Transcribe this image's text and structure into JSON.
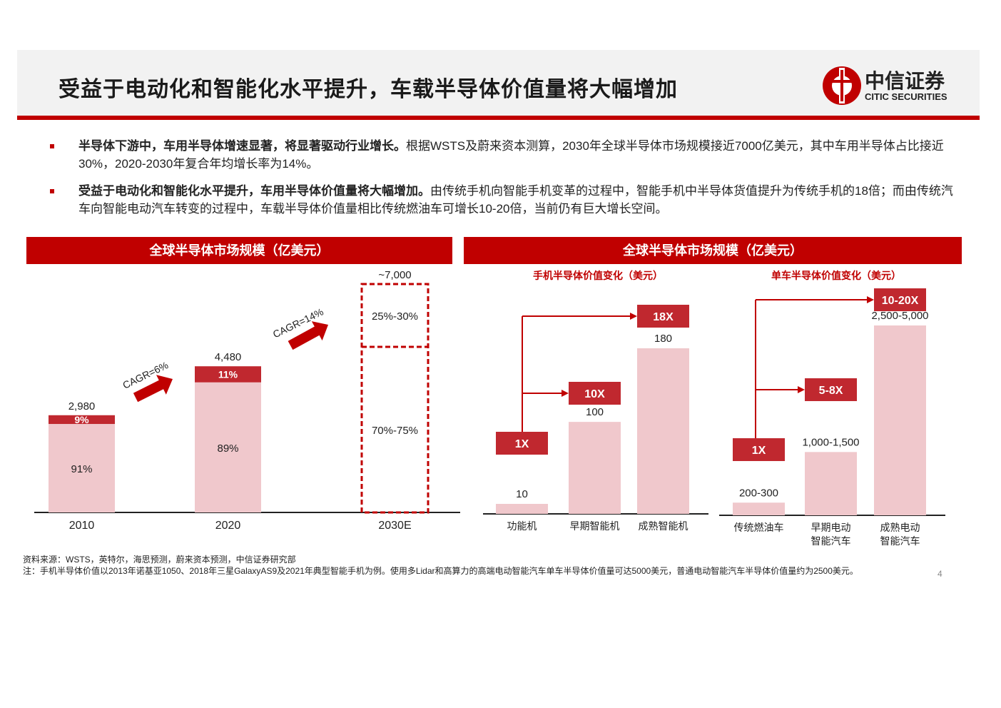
{
  "header": {
    "title": "受益于电动化和智能化水平提升，车载半导体价值量将大幅增加",
    "logo_cn": "中信证券",
    "logo_en": "CITIC SECURITIES"
  },
  "bullets": [
    {
      "bold": "半导体下游中，车用半导体增速显著，将显著驱动行业增长。",
      "text": "根据WSTS及蔚来资本测算，2030年全球半导体市场规模接近7000亿美元，其中车用半导体占比接近30%，2020-2030年复合年均增长率为14%。"
    },
    {
      "bold": "受益于电动化和智能化水平提升，车用半导体价值量将大幅增加。",
      "text": "由传统手机向智能手机变革的过程中，智能手机中半导体货值提升为传统手机的18倍；而由传统汽车向智能电动汽车转变的过程中，车载半导体价值量相比传统燃油车可增长10-20倍，当前仍有巨大增长空间。"
    }
  ],
  "colors": {
    "accent": "#c00000",
    "bar_light": "#f0c8cc",
    "bar_dark": "#c0282f"
  },
  "chart_data": [
    {
      "type": "bar",
      "title": "全球半导体市场规模（亿美元）",
      "categories": [
        "2010",
        "2020",
        "2030E"
      ],
      "totals": [
        2980,
        4480,
        7000
      ],
      "total_labels": [
        "2,980",
        "4,480",
        "~7,000"
      ],
      "series": [
        {
          "values": [
            91,
            89,
            72.5
          ],
          "labels": [
            "91%",
            "89%",
            "70%-75%"
          ]
        },
        {
          "values": [
            9,
            11,
            27.5
          ],
          "labels": [
            "9%",
            "11%",
            "25%-30%"
          ]
        }
      ],
      "annotations": [
        "CAGR=6%",
        "CAGR=14%"
      ],
      "projected_index": 2
    },
    {
      "type": "bar",
      "title": "全球半导体市场规模（亿美元）",
      "subcharts": [
        {
          "subtitle": "手机半导体价值变化（美元）",
          "categories": [
            "功能机",
            "早期智能机",
            "成熟智能机"
          ],
          "values": [
            10,
            100,
            180
          ],
          "value_labels": [
            "10",
            "100",
            "180"
          ],
          "multipliers": [
            "1X",
            "10X",
            "18X"
          ]
        },
        {
          "subtitle": "单车半导体价值变化（美元）",
          "categories": [
            "传统燃油车",
            "早期电动智能汽车",
            "成熟电动智能汽车"
          ],
          "category_lines": [
            [
              "传统燃油车"
            ],
            [
              "早期电动",
              "智能汽车"
            ],
            [
              "成熟电动",
              "智能汽车"
            ]
          ],
          "values": [
            250,
            1250,
            3750
          ],
          "value_labels": [
            "200-300",
            "1,000-1,500",
            "2,500-5,000"
          ],
          "multipliers": [
            "1X",
            "5-8X",
            "10-20X"
          ]
        }
      ]
    }
  ],
  "notes": {
    "source": "资料来源：WSTS，英特尔，海思预测，蔚来资本预测，中信证券研究部",
    "note": "注：手机半导体价值以2013年诺基亚1050、2018年三星GalaxyAS9及2021年典型智能手机为例。使用多Lidar和高算力的高端电动智能汽车单车半导体价值量可达5000美元，普通电动智能汽车半导体价值量约为2500美元。",
    "page": "4"
  }
}
